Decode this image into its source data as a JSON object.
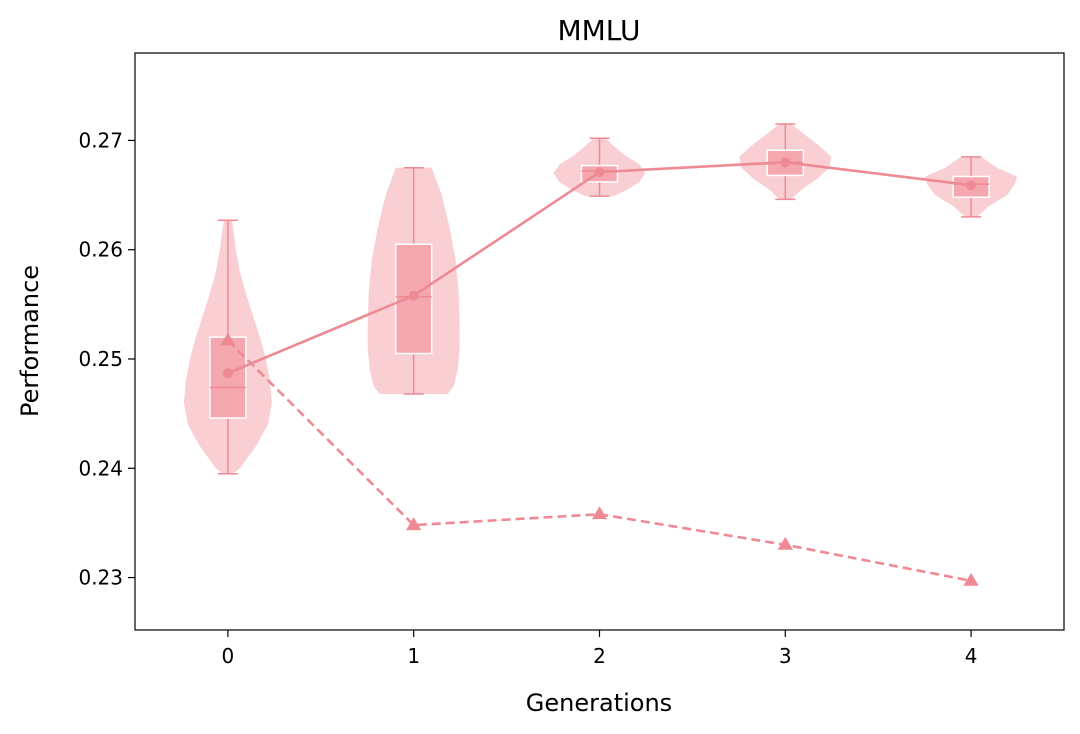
{
  "chart_data": {
    "type": "violin",
    "title": "MMLU",
    "xlabel": "Generations",
    "ylabel": "Performance",
    "x": [
      0,
      1,
      2,
      3,
      4
    ],
    "x_tick_labels": [
      "0",
      "1",
      "2",
      "3",
      "4"
    ],
    "xlim": [
      -0.5,
      4.5
    ],
    "ylim": [
      0.2252,
      0.278
    ],
    "y_ticks": [
      0.23,
      0.24,
      0.25,
      0.26,
      0.27
    ],
    "y_tick_labels": [
      "0.23",
      "0.24",
      "0.25",
      "0.26",
      "0.27"
    ],
    "grid": false,
    "colors": {
      "violin": "#f9cfd4",
      "box": "#f4a7ae",
      "whisker": "#ee8a93",
      "line": "#ee8a93"
    },
    "distributions": [
      {
        "x": 0,
        "min": 0.2395,
        "max": 0.2627,
        "q1": 0.2446,
        "median": 0.2474,
        "q3": 0.252,
        "profile": [
          [
            0.2395,
            5
          ],
          [
            0.24,
            12
          ],
          [
            0.242,
            28
          ],
          [
            0.244,
            40
          ],
          [
            0.246,
            44
          ],
          [
            0.248,
            42
          ],
          [
            0.25,
            38
          ],
          [
            0.252,
            32
          ],
          [
            0.254,
            25
          ],
          [
            0.256,
            18
          ],
          [
            0.258,
            12
          ],
          [
            0.26,
            8
          ],
          [
            0.2615,
            6
          ],
          [
            0.2627,
            4
          ]
        ]
      },
      {
        "x": 1,
        "min": 0.2468,
        "max": 0.2675,
        "q1": 0.2505,
        "median": 0.2557,
        "q3": 0.2605,
        "profile": [
          [
            0.2468,
            34
          ],
          [
            0.2475,
            40
          ],
          [
            0.249,
            44
          ],
          [
            0.251,
            46
          ],
          [
            0.253,
            46
          ],
          [
            0.256,
            45
          ],
          [
            0.259,
            42
          ],
          [
            0.262,
            36
          ],
          [
            0.265,
            28
          ],
          [
            0.267,
            20
          ],
          [
            0.2675,
            18
          ]
        ]
      },
      {
        "x": 2,
        "min": 0.2649,
        "max": 0.2702,
        "q1": 0.2662,
        "median": 0.2672,
        "q3": 0.2677,
        "profile": [
          [
            0.2649,
            14
          ],
          [
            0.2655,
            28
          ],
          [
            0.2662,
            40
          ],
          [
            0.267,
            46
          ],
          [
            0.2678,
            40
          ],
          [
            0.2686,
            26
          ],
          [
            0.2695,
            14
          ],
          [
            0.2702,
            6
          ]
        ]
      },
      {
        "x": 3,
        "min": 0.2646,
        "max": 0.2715,
        "q1": 0.2668,
        "median": 0.268,
        "q3": 0.2691,
        "profile": [
          [
            0.2646,
            6
          ],
          [
            0.2655,
            16
          ],
          [
            0.2665,
            32
          ],
          [
            0.2675,
            44
          ],
          [
            0.2685,
            46
          ],
          [
            0.2695,
            34
          ],
          [
            0.2705,
            20
          ],
          [
            0.2715,
            6
          ]
        ]
      },
      {
        "x": 4,
        "min": 0.263,
        "max": 0.2685,
        "q1": 0.2648,
        "median": 0.266,
        "q3": 0.2667,
        "profile": [
          [
            0.263,
            6
          ],
          [
            0.264,
            18
          ],
          [
            0.265,
            36
          ],
          [
            0.266,
            44
          ],
          [
            0.2667,
            46
          ],
          [
            0.2675,
            26
          ],
          [
            0.2685,
            10
          ]
        ]
      }
    ],
    "series": [
      {
        "style": "solid-circle",
        "values": [
          0.2487,
          0.2558,
          0.2671,
          0.268,
          0.2659
        ]
      },
      {
        "style": "dashed-triangle",
        "values": [
          0.2517,
          0.2348,
          0.2358,
          0.233,
          0.2297
        ]
      }
    ]
  }
}
